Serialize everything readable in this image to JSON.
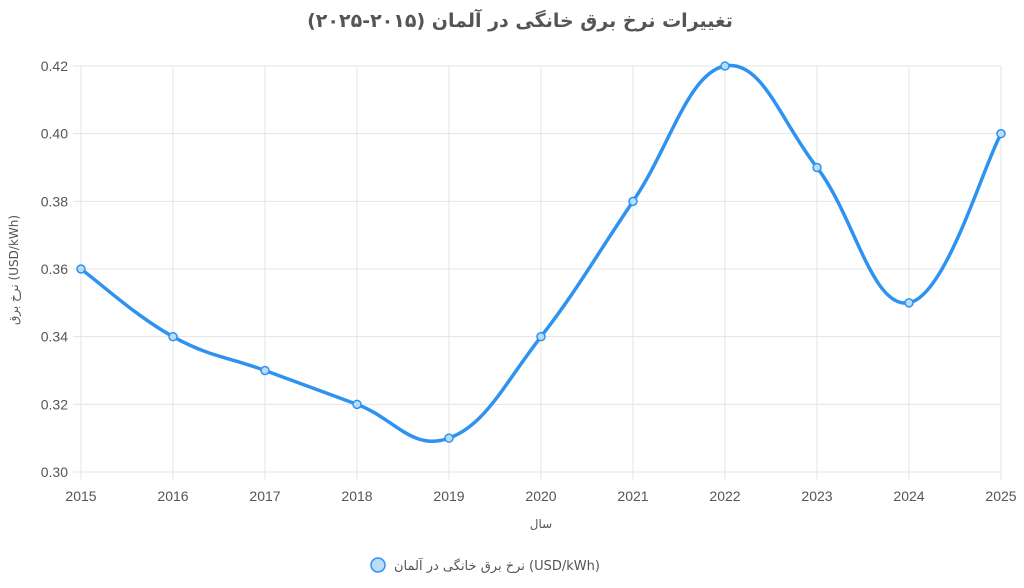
{
  "chart_data": {
    "type": "line",
    "title": "تغییرات نرخ برق خانگی در آلمان (۲۰۱۵-۲۰۲۵)",
    "xlabel": "سال",
    "ylabel": "نرخ برق (USD/kWh)",
    "categories": [
      "2015",
      "2016",
      "2017",
      "2018",
      "2019",
      "2020",
      "2021",
      "2022",
      "2023",
      "2024",
      "2025"
    ],
    "series": [
      {
        "name": "نرخ برق خانگی در آلمان (USD/kWh)",
        "values": [
          0.36,
          0.34,
          0.33,
          0.32,
          0.31,
          0.34,
          0.38,
          0.42,
          0.39,
          0.35,
          0.4
        ]
      }
    ],
    "ylim": [
      0.3,
      0.42
    ],
    "yticks": [
      "0.30",
      "0.32",
      "0.34",
      "0.36",
      "0.38",
      "0.40",
      "0.42"
    ],
    "grid": true,
    "legend_position": "bottom",
    "line_color": "#2e93f0",
    "point_fill": "#b9dcfb"
  }
}
